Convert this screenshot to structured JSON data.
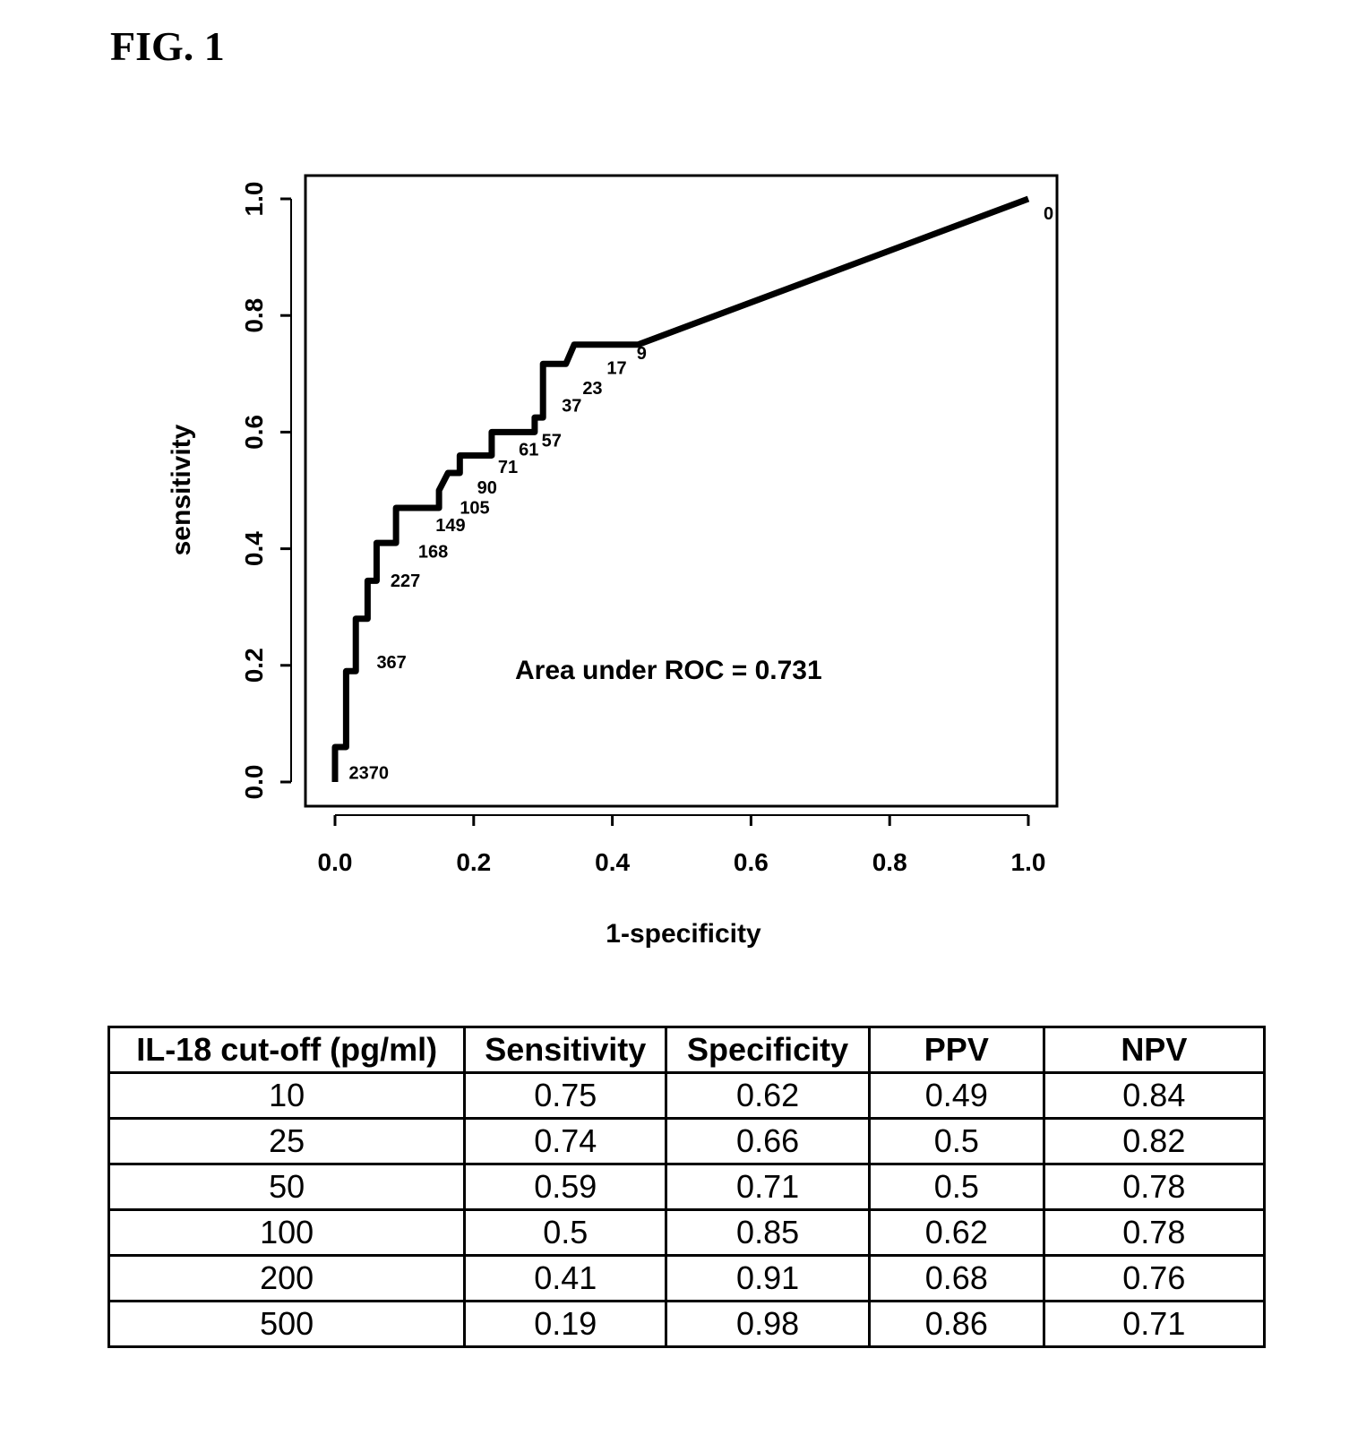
{
  "figure_title": "FIG. 1",
  "chart_data": {
    "type": "line",
    "title": "",
    "xlabel": "1-specificity",
    "ylabel": "sensitivity",
    "xlim": [
      0,
      1
    ],
    "ylim": [
      0,
      1
    ],
    "xticks": [
      "0.0",
      "0.2",
      "0.4",
      "0.6",
      "0.8",
      "1.0"
    ],
    "yticks": [
      "0.0",
      "0.2",
      "0.4",
      "0.6",
      "0.8",
      "1.0"
    ],
    "annotation": "Area under ROC = 0.731",
    "series": [
      {
        "name": "ROC",
        "x": [
          0,
          0,
          0.016,
          0.016,
          0.03,
          0.03,
          0.047,
          0.047,
          0.06,
          0.06,
          0.088,
          0.088,
          0.15,
          0.15,
          0.163,
          0.18,
          0.18,
          0.226,
          0.226,
          0.288,
          0.288,
          0.3,
          0.3,
          0.333,
          0.345,
          0.437,
          1.0
        ],
        "y": [
          0,
          0.06,
          0.06,
          0.19,
          0.19,
          0.28,
          0.28,
          0.345,
          0.345,
          0.41,
          0.41,
          0.47,
          0.47,
          0.5,
          0.53,
          0.53,
          0.56,
          0.56,
          0.6,
          0.6,
          0.625,
          0.625,
          0.717,
          0.717,
          0.75,
          0.75,
          1.0
        ]
      }
    ],
    "point_labels": [
      {
        "text": "2370",
        "x": 0.02,
        "y": 0.005
      },
      {
        "text": "367",
        "x": 0.06,
        "y": 0.195
      },
      {
        "text": "227",
        "x": 0.08,
        "y": 0.335
      },
      {
        "text": "168",
        "x": 0.12,
        "y": 0.385
      },
      {
        "text": "149",
        "x": 0.145,
        "y": 0.43
      },
      {
        "text": "105",
        "x": 0.18,
        "y": 0.46
      },
      {
        "text": "90",
        "x": 0.205,
        "y": 0.495
      },
      {
        "text": "71",
        "x": 0.235,
        "y": 0.53
      },
      {
        "text": "61",
        "x": 0.265,
        "y": 0.56
      },
      {
        "text": "57",
        "x": 0.298,
        "y": 0.575
      },
      {
        "text": "37",
        "x": 0.327,
        "y": 0.635
      },
      {
        "text": "23",
        "x": 0.357,
        "y": 0.665
      },
      {
        "text": "17",
        "x": 0.392,
        "y": 0.7
      },
      {
        "text": "9",
        "x": 0.435,
        "y": 0.725
      },
      {
        "text": "0",
        "x": 1.022,
        "y": 0.965
      }
    ]
  },
  "table": {
    "headers": [
      "IL-18 cut-off (pg/ml)",
      "Sensitivity",
      "Specificity",
      "PPV",
      "NPV"
    ],
    "rows": [
      [
        "10",
        "0.75",
        "0.62",
        "0.49",
        "0.84"
      ],
      [
        "25",
        "0.74",
        "0.66",
        "0.5",
        "0.82"
      ],
      [
        "50",
        "0.59",
        "0.71",
        "0.5",
        "0.78"
      ],
      [
        "100",
        "0.5",
        "0.85",
        "0.62",
        "0.78"
      ],
      [
        "200",
        "0.41",
        "0.91",
        "0.68",
        "0.76"
      ],
      [
        "500",
        "0.19",
        "0.98",
        "0.86",
        "0.71"
      ]
    ]
  }
}
